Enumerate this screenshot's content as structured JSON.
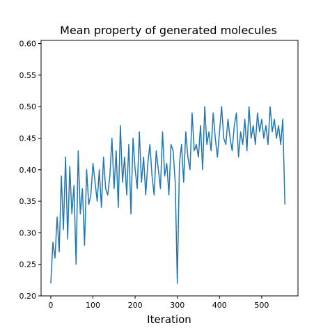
{
  "chart_data": {
    "type": "line",
    "title": "Mean property of generated molecules",
    "xlabel": "Iteration",
    "ylabel": "",
    "xlim": [
      -23,
      586
    ],
    "ylim": [
      0.2,
      0.605
    ],
    "xticks": [
      0,
      100,
      200,
      300,
      400,
      500
    ],
    "yticks": [
      0.2,
      0.25,
      0.3,
      0.35,
      0.4,
      0.45,
      0.5,
      0.55,
      0.6
    ],
    "xtick_labels": [
      "0",
      "100",
      "200",
      "300",
      "400",
      "500"
    ],
    "ytick_labels": [
      "0.20",
      "0.25",
      "0.30",
      "0.35",
      "0.40",
      "0.45",
      "0.50",
      "0.55",
      "0.60"
    ],
    "grid": false,
    "series": [
      {
        "color": "#1f77b4",
        "x": [
          0,
          5,
          10,
          15,
          20,
          25,
          30,
          35,
          40,
          45,
          50,
          55,
          60,
          65,
          70,
          75,
          80,
          85,
          90,
          95,
          100,
          105,
          110,
          115,
          120,
          125,
          130,
          135,
          140,
          145,
          150,
          155,
          160,
          165,
          170,
          175,
          180,
          185,
          190,
          195,
          200,
          205,
          210,
          215,
          220,
          225,
          230,
          235,
          240,
          245,
          250,
          255,
          260,
          265,
          270,
          275,
          280,
          285,
          290,
          295,
          300,
          305,
          310,
          315,
          320,
          325,
          330,
          335,
          340,
          345,
          350,
          355,
          360,
          365,
          370,
          375,
          380,
          385,
          390,
          395,
          400,
          405,
          410,
          415,
          420,
          425,
          430,
          435,
          440,
          445,
          450,
          455,
          460,
          465,
          470,
          475,
          480,
          485,
          490,
          495,
          500,
          505,
          510,
          515,
          520,
          525,
          530,
          535,
          540,
          545,
          550,
          555
        ],
        "y": [
          0.22,
          0.285,
          0.26,
          0.325,
          0.27,
          0.39,
          0.305,
          0.42,
          0.29,
          0.405,
          0.33,
          0.375,
          0.25,
          0.43,
          0.33,
          0.37,
          0.28,
          0.4,
          0.345,
          0.36,
          0.41,
          0.38,
          0.35,
          0.4,
          0.34,
          0.42,
          0.37,
          0.36,
          0.39,
          0.45,
          0.37,
          0.43,
          0.34,
          0.47,
          0.38,
          0.42,
          0.36,
          0.44,
          0.33,
          0.45,
          0.4,
          0.37,
          0.46,
          0.38,
          0.42,
          0.36,
          0.41,
          0.44,
          0.39,
          0.36,
          0.43,
          0.4,
          0.37,
          0.46,
          0.39,
          0.41,
          0.36,
          0.44,
          0.43,
          0.38,
          0.22,
          0.41,
          0.44,
          0.38,
          0.46,
          0.42,
          0.4,
          0.49,
          0.43,
          0.44,
          0.42,
          0.47,
          0.4,
          0.5,
          0.44,
          0.46,
          0.43,
          0.49,
          0.45,
          0.42,
          0.46,
          0.5,
          0.45,
          0.44,
          0.48,
          0.45,
          0.43,
          0.47,
          0.49,
          0.42,
          0.46,
          0.44,
          0.48,
          0.43,
          0.5,
          0.45,
          0.47,
          0.44,
          0.49,
          0.46,
          0.48,
          0.45,
          0.47,
          0.44,
          0.5,
          0.46,
          0.48,
          0.45,
          0.47,
          0.44,
          0.48,
          0.345
        ]
      }
    ]
  }
}
